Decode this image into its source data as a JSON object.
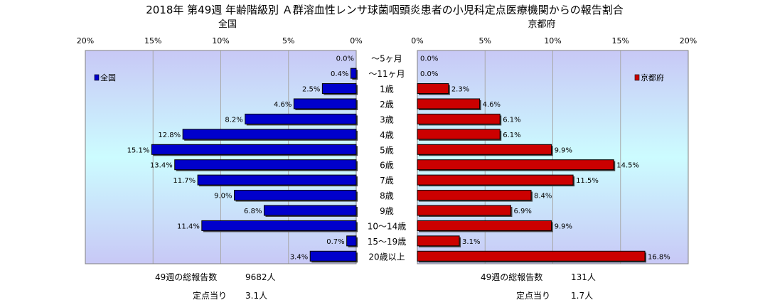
{
  "title": "2018年 第49週 年齢階級別 Ａ群溶血性レンサ球菌咽頭炎患者の小児科定点医療機関からの報告割合",
  "chart_data": {
    "type": "bar",
    "orientation": "horizontal",
    "categories": [
      "～5ヶ月",
      "～11ヶ月",
      "1歳",
      "2歳",
      "3歳",
      "4歳",
      "5歳",
      "6歳",
      "7歳",
      "8歳",
      "9歳",
      "10～14歳",
      "15～19歳",
      "20歳以上"
    ],
    "xlim": [
      0,
      20
    ],
    "xticks": [
      "0%",
      "5%",
      "10%",
      "15%",
      "20%"
    ],
    "grid": true,
    "panels": [
      {
        "panel_title": "全国",
        "direction": "reversed",
        "series": [
          {
            "name": "全国",
            "color": "#0000cc",
            "values": [
              0.0,
              0.4,
              2.5,
              4.6,
              8.2,
              12.8,
              15.1,
              13.4,
              11.7,
              9.0,
              6.8,
              11.4,
              0.7,
              3.4
            ],
            "labels": [
              "0.0%",
              "0.4%",
              "2.5%",
              "4.6%",
              "8.2%",
              "12.8%",
              "15.1%",
              "13.4%",
              "11.7%",
              "9.0%",
              "6.8%",
              "11.4%",
              "0.7%",
              "3.4%"
            ]
          }
        ],
        "legend_placement": "top-left",
        "background": "gradient-blue"
      },
      {
        "panel_title": "京都府",
        "direction": "normal",
        "series": [
          {
            "name": "京都府",
            "color": "#cc0000",
            "values": [
              0.0,
              0.0,
              2.3,
              4.6,
              6.1,
              6.1,
              9.9,
              14.5,
              11.5,
              8.4,
              6.9,
              9.9,
              3.1,
              16.8
            ],
            "labels": [
              "0.0%",
              "0.0%",
              "2.3%",
              "4.6%",
              "6.1%",
              "6.1%",
              "9.9%",
              "14.5%",
              "11.5%",
              "8.4%",
              "6.9%",
              "9.9%",
              "3.1%",
              "16.8%"
            ]
          }
        ],
        "legend_placement": "top-right",
        "background": "gradient-blue"
      }
    ]
  },
  "footer": {
    "left": {
      "total_label": "49週の総報告数",
      "total_value": "9682人",
      "per_label": "定点当り",
      "per_value": "3.1人"
    },
    "right": {
      "total_label": "49週の総報告数",
      "total_value": "131人",
      "per_label": "定点当り",
      "per_value": "1.7人"
    }
  }
}
